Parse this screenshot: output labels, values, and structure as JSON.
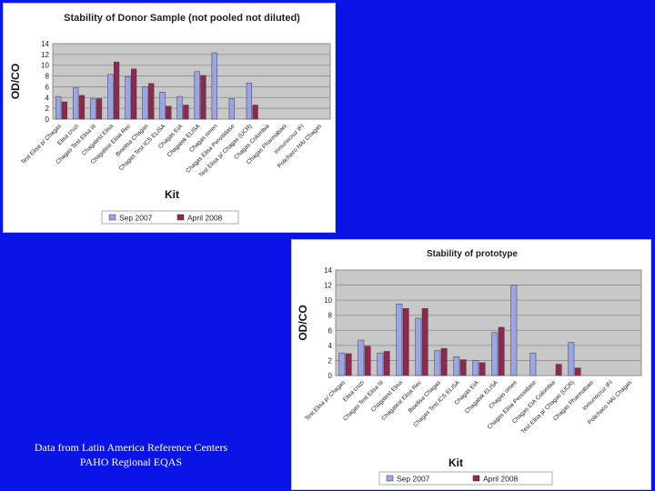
{
  "background_color": "#0a14e6",
  "caption": {
    "line1": "Data from Latin America Reference Centers",
    "line2": "PAHO Regional EQAS"
  },
  "chart_data": [
    {
      "type": "bar",
      "title": "Stability of Donor Sample (not pooled not diluted)",
      "xlabel": "Kit",
      "ylabel": "OD/CO",
      "ylim": [
        0,
        14
      ],
      "yticks": [
        0,
        2,
        4,
        6,
        8,
        10,
        12,
        14
      ],
      "grid": true,
      "legend_position": "bottom",
      "categories": [
        "Test Elisa p/ Chagas",
        "Elisa cruzi",
        "Chagas Test Elisa III",
        "Chagatest Elisa",
        "Chagatest Elisa Rec",
        "Bioelisa Chagas",
        "Chagas Test ICS ELISA",
        "Chagas EIA",
        "Chagatek ELISA",
        "Chagas omen",
        "Chagas Elisa Peroxidase",
        "Test Elisa p/ Chagas (UCR)",
        "Chagas Colombia",
        "Chagas Pharmabaei",
        "Inmunocruz IFI",
        "Polichaco HAI Chagas"
      ],
      "series": [
        {
          "name": "Sep 2007",
          "color": "#9aa4e8",
          "values": [
            4.2,
            5.8,
            3.8,
            8.3,
            7.9,
            6.0,
            5.0,
            4.2,
            8.8,
            12.3,
            3.8,
            6.7,
            null,
            null,
            null,
            null
          ]
        },
        {
          "name": "April 2008",
          "color": "#8e2850",
          "values": [
            3.2,
            4.4,
            3.8,
            10.6,
            9.3,
            6.6,
            2.4,
            2.6,
            8.1,
            null,
            null,
            2.6,
            null,
            null,
            null,
            null
          ]
        }
      ]
    },
    {
      "type": "bar",
      "title": "Stability of prototype",
      "xlabel": "Kit",
      "ylabel": "OD/CO",
      "ylim": [
        0,
        14
      ],
      "yticks": [
        0,
        2,
        4,
        6,
        8,
        10,
        12,
        14
      ],
      "grid": true,
      "legend_position": "bottom",
      "categories": [
        "Test Elisa p/ Chagas",
        "Elisa cruzi",
        "Chagas Test Elisa III",
        "Chagatest Elisa",
        "Chagatest Elisa Rec",
        "Bioelisa Chagas",
        "Chagas Test ICS ELISA",
        "Chagas EIA",
        "Chagatek ELISA",
        "Chagas omen",
        "Chagas Elisa Peroxidase",
        "Chagas EIA Colombia",
        "Test Elisa p/ Chagas (UCR)",
        "Chagas Pharmabaei",
        "Inmunocruz IFI",
        "Polichaco HAI Chagas"
      ],
      "series": [
        {
          "name": "Sep 2007",
          "color": "#9aa4e8",
          "values": [
            3.0,
            4.7,
            3.0,
            9.5,
            7.6,
            3.3,
            2.5,
            2.0,
            5.7,
            12.0,
            3.0,
            null,
            4.4,
            null,
            null,
            null
          ]
        },
        {
          "name": "April 2008",
          "color": "#8e2850",
          "values": [
            2.9,
            3.9,
            3.2,
            8.9,
            8.9,
            3.6,
            2.1,
            1.7,
            6.4,
            null,
            null,
            1.5,
            1.0,
            null,
            null,
            null
          ]
        }
      ]
    }
  ]
}
